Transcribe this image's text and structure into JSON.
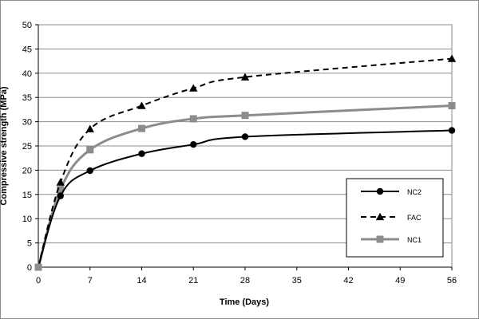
{
  "chart_data": {
    "type": "line",
    "xlabel": "Time (Days)",
    "ylabel": "Compressive strength (MPa)",
    "xlim": [
      0,
      56
    ],
    "ylim": [
      0,
      50
    ],
    "xticks": [
      0,
      7,
      14,
      21,
      28,
      35,
      42,
      49,
      56
    ],
    "yticks": [
      0,
      5,
      10,
      15,
      20,
      25,
      30,
      35,
      40,
      45,
      50
    ],
    "grid": "horizontal",
    "legend_position": "bottom-right",
    "series": [
      {
        "name": "NC2",
        "color": "#000000",
        "line_style": "solid",
        "marker": "circle",
        "x": [
          0,
          3,
          7,
          14,
          21,
          28,
          56
        ],
        "y": [
          0,
          14.7,
          19.9,
          23.4,
          25.3,
          26.9,
          28.2
        ]
      },
      {
        "name": "FAC",
        "color": "#000000",
        "line_style": "dashed",
        "marker": "triangle",
        "x": [
          0,
          3,
          7,
          14,
          21,
          28,
          56
        ],
        "y": [
          0,
          17.5,
          28.5,
          33.3,
          36.9,
          39.2,
          43.0
        ]
      },
      {
        "name": "NC1",
        "color": "#8c8c8c",
        "line_style": "solid",
        "marker": "square",
        "x": [
          0,
          3,
          7,
          14,
          21,
          28,
          56
        ],
        "y": [
          0,
          16.0,
          24.2,
          28.6,
          30.6,
          31.3,
          33.3
        ]
      }
    ]
  }
}
